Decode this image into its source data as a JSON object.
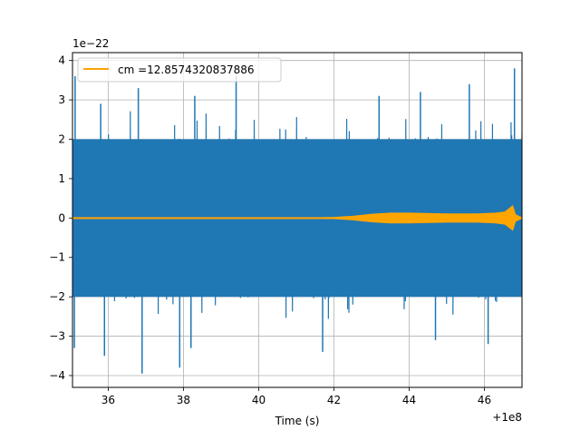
{
  "chart_data": {
    "type": "line",
    "title": "",
    "xlabel": "Time (s)",
    "ylabel": "",
    "x_offset_label": "+1e8",
    "y_scale_label": "1e−22",
    "xlim": [
      35.05,
      47.0
    ],
    "ylim": [
      -4.3,
      4.2
    ],
    "grid": true,
    "legend_position": "upper-left",
    "x_ticks": [
      36,
      38,
      40,
      42,
      44,
      46
    ],
    "x_tick_labels": [
      "36",
      "38",
      "40",
      "42",
      "44",
      "46"
    ],
    "y_ticks": [
      -4,
      -3,
      -2,
      -1,
      0,
      1,
      2,
      3,
      4
    ],
    "y_tick_labels": [
      "−4",
      "−3",
      "−2",
      "−1",
      "0",
      "1",
      "2",
      "3",
      "4"
    ],
    "series": [
      {
        "legend_label": "",
        "color": "#1f77b4",
        "description_peaks": {
          "max_peaks": [
            {
              "x": 35.12,
              "y": 3.6
            },
            {
              "x": 35.8,
              "y": 2.9
            },
            {
              "x": 36.8,
              "y": 3.3
            },
            {
              "x": 38.3,
              "y": 3.1
            },
            {
              "x": 39.4,
              "y": 3.6
            },
            {
              "x": 43.2,
              "y": 3.1
            },
            {
              "x": 44.3,
              "y": 3.2
            },
            {
              "x": 45.6,
              "y": 3.4
            },
            {
              "x": 46.8,
              "y": 3.8
            }
          ],
          "min_peaks": [
            {
              "x": 35.1,
              "y": -3.3
            },
            {
              "x": 35.9,
              "y": -3.5
            },
            {
              "x": 36.9,
              "y": -3.95
            },
            {
              "x": 37.9,
              "y": -3.8
            },
            {
              "x": 38.2,
              "y": -3.3
            },
            {
              "x": 41.7,
              "y": -3.4
            },
            {
              "x": 44.7,
              "y": -3.1
            },
            {
              "x": 46.1,
              "y": -3.2
            }
          ],
          "typical_envelope": [
            -2.0,
            2.0
          ]
        }
      },
      {
        "legend_label": "cm =12.8574320837886",
        "color": "#ffa500",
        "envelope_points": [
          [
            35.05,
            0.0
          ],
          [
            41.5,
            0.0
          ],
          [
            42.0,
            0.01
          ],
          [
            42.5,
            0.04
          ],
          [
            43.0,
            0.09
          ],
          [
            43.5,
            0.12
          ],
          [
            44.0,
            0.12
          ],
          [
            45.0,
            0.1
          ],
          [
            45.8,
            0.1
          ],
          [
            46.3,
            0.12
          ],
          [
            46.55,
            0.15
          ],
          [
            46.75,
            0.3
          ],
          [
            46.82,
            0.08
          ],
          [
            47.0,
            0.0
          ]
        ]
      }
    ]
  }
}
